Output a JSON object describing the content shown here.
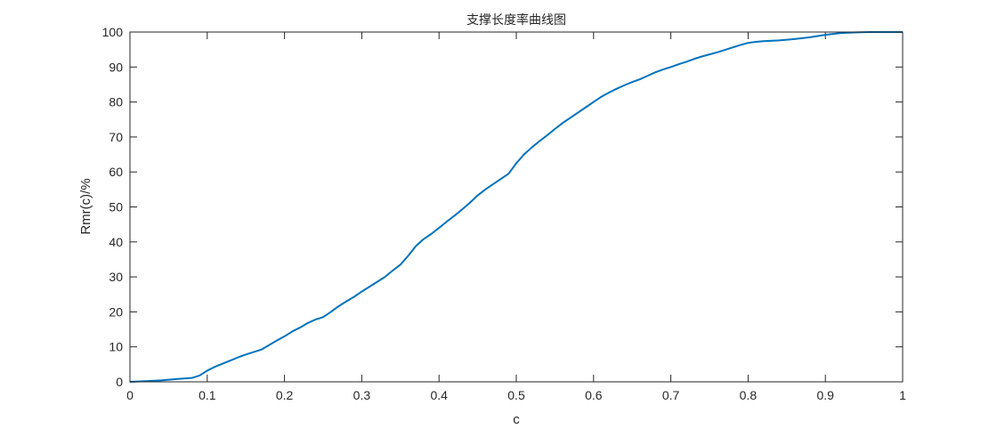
{
  "chart_data": {
    "type": "line",
    "title": "支撑长度率曲线图",
    "xlabel": "c",
    "ylabel": "Rmr(c)/%",
    "xlim": [
      0,
      1
    ],
    "ylim": [
      0,
      100
    ],
    "xticks": [
      "0",
      "0.1",
      "0.2",
      "0.3",
      "0.4",
      "0.5",
      "0.6",
      "0.7",
      "0.8",
      "0.9",
      "1"
    ],
    "yticks": [
      "0",
      "10",
      "20",
      "30",
      "40",
      "50",
      "60",
      "70",
      "80",
      "90",
      "100"
    ],
    "grid": false,
    "series": [
      {
        "color": "#0072BD",
        "x": [
          0,
          0.02,
          0.04,
          0.06,
          0.08,
          0.09,
          0.1,
          0.11,
          0.12,
          0.13,
          0.14,
          0.15,
          0.16,
          0.17,
          0.18,
          0.19,
          0.2,
          0.21,
          0.22,
          0.23,
          0.24,
          0.25,
          0.26,
          0.27,
          0.28,
          0.29,
          0.3,
          0.31,
          0.32,
          0.33,
          0.34,
          0.35,
          0.36,
          0.37,
          0.38,
          0.39,
          0.4,
          0.41,
          0.42,
          0.43,
          0.44,
          0.45,
          0.46,
          0.47,
          0.48,
          0.49,
          0.5,
          0.51,
          0.52,
          0.53,
          0.54,
          0.55,
          0.56,
          0.57,
          0.58,
          0.59,
          0.6,
          0.61,
          0.62,
          0.63,
          0.64,
          0.65,
          0.66,
          0.67,
          0.68,
          0.69,
          0.7,
          0.71,
          0.72,
          0.73,
          0.74,
          0.75,
          0.76,
          0.77,
          0.78,
          0.79,
          0.8,
          0.81,
          0.82,
          0.84,
          0.86,
          0.88,
          0.9,
          0.92,
          0.94,
          0.96,
          0.98,
          1.0
        ],
        "y": [
          0,
          0.2,
          0.4,
          0.8,
          1.1,
          1.8,
          3.2,
          4.3,
          5.2,
          6.1,
          7.0,
          7.8,
          8.5,
          9.2,
          10.5,
          11.8,
          13.0,
          14.4,
          15.5,
          16.8,
          17.8,
          18.5,
          20.0,
          21.6,
          23.0,
          24.3,
          25.8,
          27.2,
          28.6,
          30.0,
          31.8,
          33.5,
          36.0,
          38.8,
          40.8,
          42.3,
          44.0,
          45.8,
          47.5,
          49.3,
          51.2,
          53.3,
          55.0,
          56.5,
          58.0,
          59.5,
          62.5,
          65.0,
          67.0,
          68.8,
          70.5,
          72.3,
          74.0,
          75.5,
          77.0,
          78.5,
          80.0,
          81.5,
          82.7,
          83.8,
          84.8,
          85.7,
          86.5,
          87.5,
          88.5,
          89.3,
          90.0,
          90.8,
          91.5,
          92.3,
          93.0,
          93.6,
          94.2,
          94.9,
          95.6,
          96.3,
          96.9,
          97.2,
          97.4,
          97.6,
          98.0,
          98.5,
          99.2,
          99.7,
          99.9,
          100,
          100,
          100
        ]
      }
    ]
  }
}
